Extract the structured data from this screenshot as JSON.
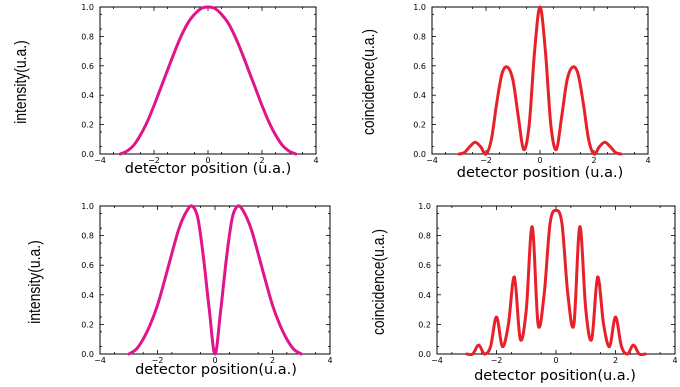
{
  "chart_data": [
    {
      "type": "line",
      "xlabel": "detector position (u.a.)",
      "ylabel": "intensity(u.a.)",
      "xlim": [
        -4,
        4
      ],
      "ylim": [
        0,
        1.0
      ],
      "x_ticks": [
        "−4",
        "−2",
        "0",
        "2",
        "4"
      ],
      "y_ticks": [
        "0.0",
        "0.2",
        "0.4",
        "0.6",
        "0.8",
        "1.0"
      ],
      "color": "#e0158c",
      "series": [
        {
          "x": [
            -3.25,
            -3.0,
            -2.75,
            -2.5,
            -2.25,
            -2.0,
            -1.75,
            -1.5,
            -1.25,
            -1.0,
            -0.75,
            -0.5,
            -0.25,
            0.0,
            0.25,
            0.5,
            0.75,
            1.0,
            1.25,
            1.5,
            1.75,
            2.0,
            2.25,
            2.5,
            2.75,
            3.0,
            3.25
          ],
          "values": [
            0.0,
            0.02,
            0.06,
            0.13,
            0.22,
            0.33,
            0.45,
            0.57,
            0.69,
            0.8,
            0.89,
            0.95,
            0.99,
            1.0,
            0.99,
            0.95,
            0.89,
            0.8,
            0.69,
            0.57,
            0.45,
            0.33,
            0.22,
            0.13,
            0.06,
            0.02,
            0.0
          ]
        }
      ]
    },
    {
      "type": "line",
      "xlabel": "detector position (u.a.)",
      "ylabel": "coincidence(u.a.)",
      "xlim": [
        -4,
        4
      ],
      "ylim": [
        0,
        1.0
      ],
      "x_ticks": [
        "−4",
        "−2",
        "0",
        "2",
        "4"
      ],
      "y_ticks": [
        "0.0",
        "0.2",
        "0.4",
        "0.6",
        "0.8",
        "1.0"
      ],
      "color": "#e8202a",
      "series": [
        {
          "x": [
            -3.0,
            -2.8,
            -2.6,
            -2.4,
            -2.2,
            -2.0,
            -1.8,
            -1.6,
            -1.4,
            -1.2,
            -1.0,
            -0.8,
            -0.6,
            -0.4,
            -0.2,
            0.0,
            0.2,
            0.4,
            0.6,
            0.8,
            1.0,
            1.2,
            1.4,
            1.6,
            1.8,
            2.0,
            2.2,
            2.4,
            2.6,
            2.8,
            3.0
          ],
          "values": [
            0.0,
            0.01,
            0.05,
            0.08,
            0.05,
            0.0,
            0.1,
            0.35,
            0.55,
            0.59,
            0.5,
            0.25,
            0.03,
            0.2,
            0.7,
            1.0,
            0.7,
            0.2,
            0.03,
            0.25,
            0.5,
            0.59,
            0.55,
            0.35,
            0.1,
            0.0,
            0.05,
            0.08,
            0.05,
            0.01,
            0.0
          ]
        }
      ]
    },
    {
      "type": "line",
      "xlabel": "detector position(u.a.)",
      "ylabel": "intensity(u.a.)",
      "xlim": [
        -4,
        4
      ],
      "ylim": [
        0,
        1.0
      ],
      "x_ticks": [
        "−4",
        "−2",
        "0",
        "2",
        "4"
      ],
      "y_ticks": [
        "0.0",
        "0.2",
        "0.4",
        "0.6",
        "0.8",
        "1.0"
      ],
      "color": "#e0158c",
      "series": [
        {
          "x": [
            -3.0,
            -2.75,
            -2.5,
            -2.25,
            -2.0,
            -1.75,
            -1.5,
            -1.25,
            -1.0,
            -0.8,
            -0.6,
            -0.4,
            -0.2,
            0.0,
            0.2,
            0.4,
            0.6,
            0.8,
            1.0,
            1.25,
            1.5,
            1.75,
            2.0,
            2.25,
            2.5,
            2.75,
            3.0
          ],
          "values": [
            0.0,
            0.03,
            0.1,
            0.2,
            0.33,
            0.5,
            0.68,
            0.85,
            0.96,
            1.0,
            0.92,
            0.65,
            0.3,
            0.0,
            0.3,
            0.65,
            0.92,
            1.0,
            0.96,
            0.85,
            0.68,
            0.5,
            0.33,
            0.2,
            0.1,
            0.03,
            0.0
          ]
        }
      ]
    },
    {
      "type": "line",
      "xlabel": "detector position(u.a.)",
      "ylabel": "coincidence(u.a.)",
      "xlim": [
        -4,
        4
      ],
      "ylim": [
        0,
        1.0
      ],
      "x_ticks": [
        "−4",
        "−2",
        "0",
        "2",
        "4"
      ],
      "y_ticks": [
        "0.0",
        "0.2",
        "0.4",
        "0.6",
        "0.8",
        "1.0"
      ],
      "color": "#e8202a",
      "series": [
        {
          "x": [
            -3.0,
            -2.8,
            -2.6,
            -2.4,
            -2.2,
            -2.0,
            -1.8,
            -1.6,
            -1.4,
            -1.2,
            -1.0,
            -0.8,
            -0.6,
            -0.4,
            -0.2,
            0.0,
            0.2,
            0.4,
            0.6,
            0.8,
            1.0,
            1.2,
            1.4,
            1.6,
            1.8,
            2.0,
            2.2,
            2.4,
            2.6,
            2.8,
            3.0
          ],
          "values": [
            0.0,
            0.0,
            0.06,
            0.0,
            0.05,
            0.25,
            0.05,
            0.2,
            0.52,
            0.1,
            0.3,
            0.86,
            0.2,
            0.4,
            0.88,
            0.97,
            0.88,
            0.4,
            0.2,
            0.86,
            0.3,
            0.1,
            0.52,
            0.2,
            0.05,
            0.25,
            0.05,
            0.0,
            0.06,
            0.0,
            0.0
          ]
        }
      ]
    }
  ]
}
